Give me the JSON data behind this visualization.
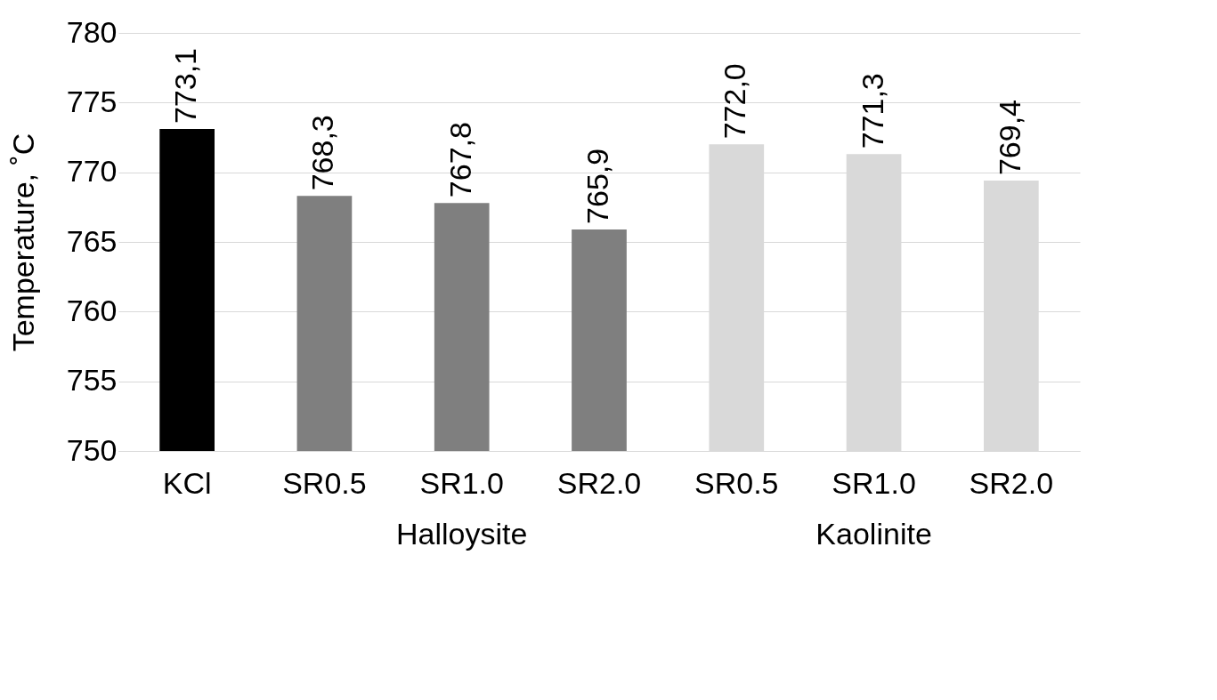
{
  "chart_data": {
    "type": "bar",
    "ylabel": "Temperature, ˚C",
    "categories": [
      "KCl",
      "SR0.5",
      "SR1.0",
      "SR2.0",
      "SR0.5",
      "SR1.0",
      "SR2.0"
    ],
    "values": [
      773.1,
      768.3,
      767.8,
      765.9,
      772.0,
      771.3,
      769.4
    ],
    "colors": [
      "#000000",
      "#7f7f7f",
      "#7f7f7f",
      "#7f7f7f",
      "#d9d9d9",
      "#d9d9d9",
      "#d9d9d9"
    ],
    "value_labels": [
      "773,1",
      "768,3",
      "767,8",
      "765,9",
      "772,0",
      "771,3",
      "769,4"
    ],
    "annotations": [
      "Halloysite",
      "Kaolinite"
    ],
    "ylim": [
      750,
      780
    ],
    "yticks": [
      750,
      755,
      760,
      765,
      770,
      775,
      780
    ],
    "grid": "y"
  }
}
